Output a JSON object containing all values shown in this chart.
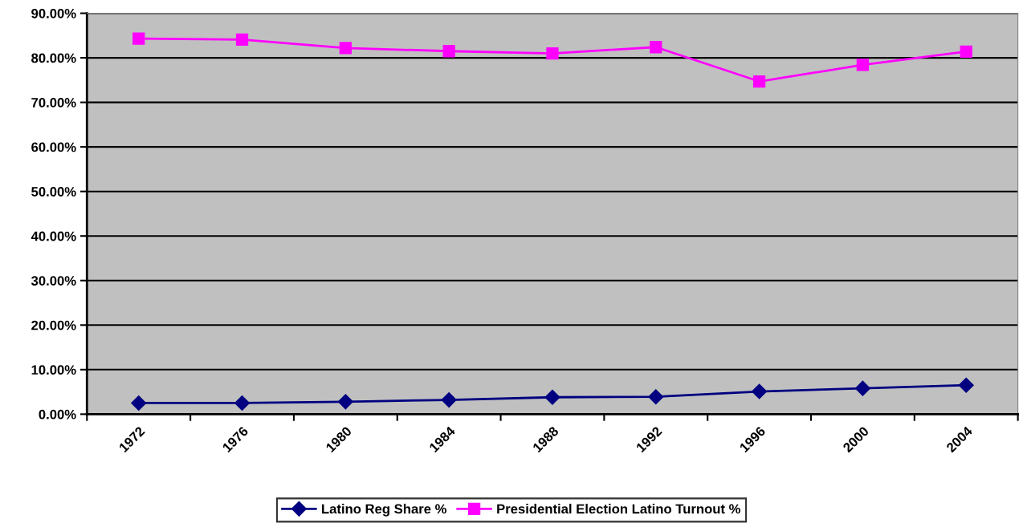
{
  "chart_data": {
    "type": "line",
    "categories": [
      "1972",
      "1976",
      "1980",
      "1984",
      "1988",
      "1992",
      "1996",
      "2000",
      "2004"
    ],
    "series": [
      {
        "name": "Latino Reg Share %",
        "color": "#000080",
        "marker": "diamond",
        "values": [
          2.5,
          2.5,
          2.8,
          3.2,
          3.8,
          3.9,
          5.1,
          5.8,
          6.5
        ]
      },
      {
        "name": "Presidential Election Latino Turnout %",
        "color": "#ff00ff",
        "marker": "square",
        "values": [
          84.3,
          84.1,
          82.2,
          81.5,
          81.0,
          82.4,
          74.7,
          78.4,
          81.4
        ]
      }
    ],
    "ylim": [
      0,
      90
    ],
    "yticks": [
      {
        "value": 0,
        "label": "0.00%"
      },
      {
        "value": 10,
        "label": "10.00%"
      },
      {
        "value": 20,
        "label": "20.00%"
      },
      {
        "value": 30,
        "label": "30.00%"
      },
      {
        "value": 40,
        "label": "40.00%"
      },
      {
        "value": 50,
        "label": "50.00%"
      },
      {
        "value": 60,
        "label": "60.00%"
      },
      {
        "value": 70,
        "label": "70.00%"
      },
      {
        "value": 80,
        "label": "80.00%"
      },
      {
        "value": 90,
        "label": "90.00%"
      }
    ],
    "grid": "y",
    "legend": "bottom"
  }
}
